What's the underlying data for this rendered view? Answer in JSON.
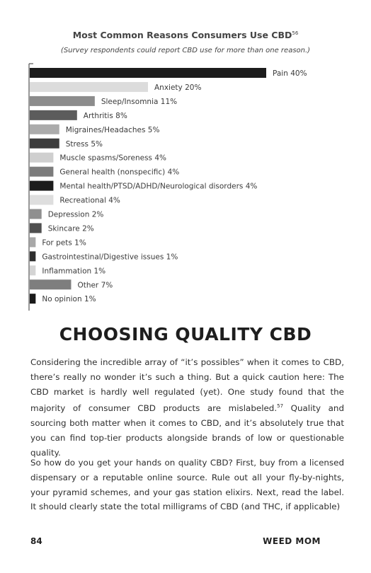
{
  "chart_data": {
    "type": "bar",
    "orientation": "horizontal",
    "title": "Most Common Reasons Consumers Use CBD",
    "title_footnote": "56",
    "subtitle": "(Survey respondents could report CBD use for more than one reason.)",
    "categories": [
      "Pain",
      "Anxiety",
      "Sleep/Insomnia",
      "Arthritis",
      "Migraines/Headaches",
      "Stress",
      "Muscle spasms/Soreness",
      "General health (nonspecific)",
      "Mental health/PTSD/ADHD/Neurological disorders",
      "Recreational",
      "Depression",
      "Skincare",
      "For pets",
      "Gastrointestinal/Digestive issues",
      "Inflammation",
      "Other",
      "No opinion"
    ],
    "values": [
      40,
      20,
      11,
      8,
      5,
      5,
      4,
      4,
      4,
      4,
      2,
      2,
      1,
      1,
      1,
      7,
      1
    ],
    "labels": [
      "Pain 40%",
      "Anxiety 20%",
      "Sleep/Insomnia 11%",
      "Arthritis 8%",
      "Migraines/Headaches 5%",
      "Stress 5%",
      "Muscle spasms/Soreness 4%",
      "General health (nonspecific) 4%",
      "Mental health/PTSD/ADHD/Neurological disorders 4%",
      "Recreational 4%",
      "Depression 2%",
      "Skincare 2%",
      "For pets 1%",
      "Gastrointestinal/Digestive issues 1%",
      "Inflammation 1%",
      "Other 7%",
      "No opinion 1%"
    ],
    "bar_colors": [
      "#1c1c1c",
      "#dcdcdc",
      "#8c8c8c",
      "#5c5c5c",
      "#ababab",
      "#3c3c3c",
      "#cfcfcf",
      "#7c7c7c",
      "#1c1c1c",
      "#dedede",
      "#8f8f8f",
      "#4f4f4f",
      "#a8a8a8",
      "#2e2e2e",
      "#d4d4d4",
      "#7e7e7e",
      "#1a1a1a"
    ],
    "xlim": [
      0,
      40
    ],
    "grid": false,
    "legend": "none"
  },
  "heading": "CHOOSING QUALITY CBD",
  "paragraph1": {
    "before_sup": "Considering the incredible array of “it’s possibles” when it comes to CBD, there’s really no wonder it’s such a thing. But a quick caution here: The CBD market is hardly well regulated (yet). One study found that the majority of consumer CBD products are mislabeled.",
    "footnote": "57",
    "after_sup": " Quality and sourcing both matter when it comes to CBD, and it’s absolutely true that you can find top-tier products alongside brands of low or questionable quality."
  },
  "paragraph2": "So how do you get your hands on quality CBD? First, buy from a licensed dispensary or a reputable online source. Rule out all your fly-by-nights, your pyramid schemes, and your gas station elixirs. Next, read the label. It should clearly state the total milligrams of CBD (and THC, if applicable)",
  "footer": {
    "page_number": "84",
    "running_head": "WEED MOM"
  }
}
